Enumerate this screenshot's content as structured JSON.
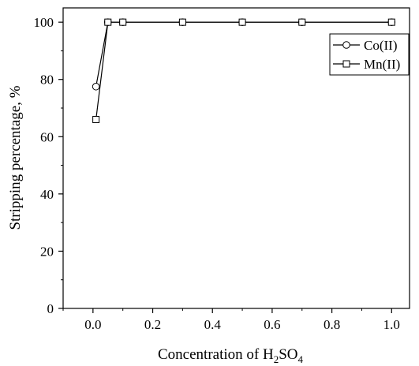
{
  "chart_data": {
    "type": "line",
    "xlabel": "Concentration of H2SO4",
    "xlabel_parts": {
      "base": "Concentration of H",
      "sub1": "2",
      "mid": "SO",
      "sub2": "4"
    },
    "ylabel": "Stripping percentage, %",
    "xlim": [
      -0.1,
      1.06
    ],
    "ylim": [
      0,
      105
    ],
    "xticks": [
      0.0,
      0.2,
      0.4,
      0.6,
      0.8,
      1.0
    ],
    "xtick_labels": [
      "0.0",
      "0.2",
      "0.4",
      "0.6",
      "0.8",
      "1.0"
    ],
    "yticks": [
      0,
      20,
      40,
      60,
      80,
      100
    ],
    "ytick_labels": [
      "0",
      "20",
      "40",
      "60",
      "80",
      "100"
    ],
    "grid": false,
    "legend_position": "top-right",
    "series": [
      {
        "name": "Co(II)",
        "marker": "circle",
        "color": "#000000",
        "x": [
          0.01,
          0.05,
          0.1,
          0.3,
          0.5,
          0.7,
          1.0
        ],
        "y": [
          77.5,
          100,
          100,
          100,
          100,
          100,
          100
        ]
      },
      {
        "name": "Mn(II)",
        "marker": "square",
        "color": "#000000",
        "x": [
          0.01,
          0.05,
          0.1,
          0.3,
          0.5,
          0.7,
          1.0
        ],
        "y": [
          66,
          100,
          100,
          100,
          100,
          100,
          100
        ]
      }
    ]
  }
}
